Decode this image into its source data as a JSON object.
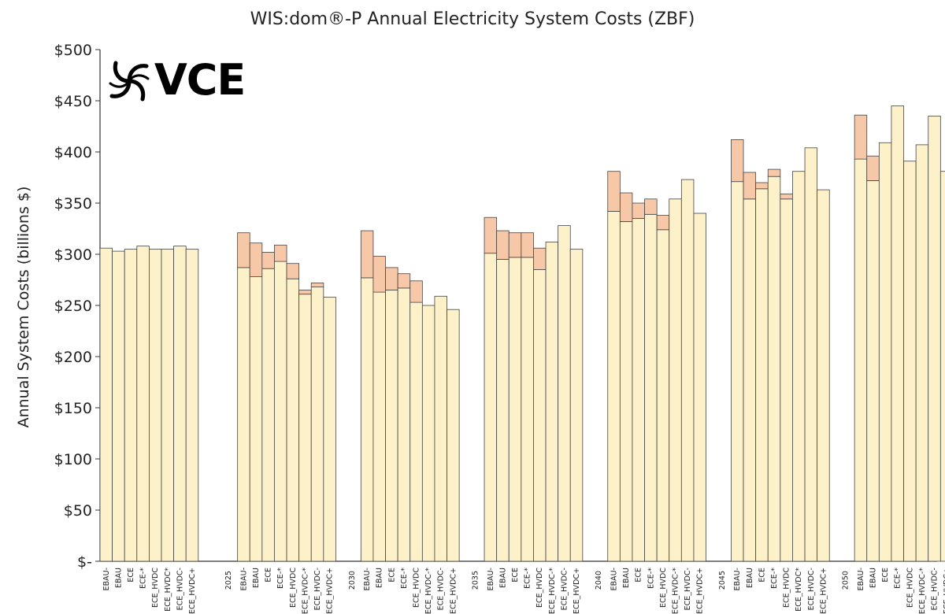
{
  "chart_data": {
    "type": "bar",
    "title": "WIS:dom®-P Annual Electricity System Costs (ZBF)",
    "ylabel": "Annual System Costs (billions $)",
    "xlabel": "",
    "ylim": [
      0,
      500
    ],
    "y_ticks": [
      0,
      50,
      100,
      150,
      200,
      250,
      300,
      350,
      400,
      450,
      500
    ],
    "y_tick_labels": [
      "$-",
      "$50",
      "$100",
      "$150",
      "$200",
      "$250",
      "$300",
      "$350",
      "$400",
      "$450",
      "$500"
    ],
    "stacked": true,
    "grid": false,
    "legend": "none",
    "series_colors": {
      "base": "#FCF1C8",
      "extra": "#F6C8A8",
      "edge": "#444444"
    },
    "groups": [
      {
        "label": "",
        "bars": [
          {
            "label": "EBAU-",
            "base": 306,
            "extra": 0
          },
          {
            "label": "EBAU",
            "base": 303,
            "extra": 0
          },
          {
            "label": "ECE",
            "base": 305,
            "extra": 0
          },
          {
            "label": "ECE-*",
            "base": 308,
            "extra": 0
          },
          {
            "label": "ECE_HVDC",
            "base": 305,
            "extra": 0
          },
          {
            "label": "ECE_HVDC*",
            "base": 305,
            "extra": 0
          },
          {
            "label": "ECE_HVDC-",
            "base": 308,
            "extra": 0
          },
          {
            "label": "ECE_HVDC+",
            "base": 305,
            "extra": 0
          }
        ]
      },
      {
        "label": "2025",
        "bars": [
          {
            "label": "EBAU-",
            "base": 287,
            "extra": 34
          },
          {
            "label": "EBAU",
            "base": 278,
            "extra": 33
          },
          {
            "label": "ECE",
            "base": 286,
            "extra": 16
          },
          {
            "label": "ECE-*",
            "base": 293,
            "extra": 16
          },
          {
            "label": "ECE_HVDC",
            "base": 276,
            "extra": 15
          },
          {
            "label": "ECE_HVDC-*",
            "base": 261,
            "extra": 4
          },
          {
            "label": "ECE_HVDC-",
            "base": 268,
            "extra": 4
          },
          {
            "label": "ECE_HVDC+",
            "base": 258,
            "extra": 0
          }
        ]
      },
      {
        "label": "2030",
        "bars": [
          {
            "label": "EBAU-",
            "base": 277,
            "extra": 46
          },
          {
            "label": "EBAU",
            "base": 263,
            "extra": 35
          },
          {
            "label": "ECE",
            "base": 265,
            "extra": 22
          },
          {
            "label": "ECE-*",
            "base": 267,
            "extra": 14
          },
          {
            "label": "ECE_HVDC",
            "base": 253,
            "extra": 21
          },
          {
            "label": "ECE_HVDC-*",
            "base": 250,
            "extra": 0
          },
          {
            "label": "ECE_HVDC-",
            "base": 259,
            "extra": 0
          },
          {
            "label": "ECE_HVDC+",
            "base": 246,
            "extra": 0
          }
        ]
      },
      {
        "label": "2035",
        "bars": [
          {
            "label": "EBAU-",
            "base": 301,
            "extra": 35
          },
          {
            "label": "EBAU",
            "base": 295,
            "extra": 28
          },
          {
            "label": "ECE",
            "base": 297,
            "extra": 24
          },
          {
            "label": "ECE-*",
            "base": 297,
            "extra": 24
          },
          {
            "label": "ECE_HVDC",
            "base": 285,
            "extra": 21
          },
          {
            "label": "ECE_HVDC-*",
            "base": 312,
            "extra": 0
          },
          {
            "label": "ECE_HVDC-",
            "base": 328,
            "extra": 0
          },
          {
            "label": "ECE_HVDC+",
            "base": 305,
            "extra": 0
          }
        ]
      },
      {
        "label": "2040",
        "bars": [
          {
            "label": "EBAU-",
            "base": 342,
            "extra": 39
          },
          {
            "label": "EBAU",
            "base": 332,
            "extra": 28
          },
          {
            "label": "ECE",
            "base": 335,
            "extra": 15
          },
          {
            "label": "ECE-*",
            "base": 339,
            "extra": 15
          },
          {
            "label": "ECE_HVDC",
            "base": 324,
            "extra": 14
          },
          {
            "label": "ECE_HVDC-*",
            "base": 354,
            "extra": 0
          },
          {
            "label": "ECE_HVDC-",
            "base": 373,
            "extra": 0
          },
          {
            "label": "ECE_HVDC+",
            "base": 340,
            "extra": 0
          }
        ]
      },
      {
        "label": "2045",
        "bars": [
          {
            "label": "EBAU-",
            "base": 371,
            "extra": 41
          },
          {
            "label": "EBAU",
            "base": 354,
            "extra": 26
          },
          {
            "label": "ECE",
            "base": 364,
            "extra": 6
          },
          {
            "label": "ECE-*",
            "base": 376,
            "extra": 7
          },
          {
            "label": "ECE_HVDC",
            "base": 354,
            "extra": 5
          },
          {
            "label": "ECE_HVDC*",
            "base": 381,
            "extra": 0
          },
          {
            "label": "ECE_HVDC-",
            "base": 404,
            "extra": 0
          },
          {
            "label": "ECE_HVDC+",
            "base": 363,
            "extra": 0
          }
        ]
      },
      {
        "label": "2050",
        "bars": [
          {
            "label": "EBAU-",
            "base": 393,
            "extra": 43
          },
          {
            "label": "EBAU",
            "base": 372,
            "extra": 24
          },
          {
            "label": "ECE",
            "base": 409,
            "extra": 0
          },
          {
            "label": "ECE-*",
            "base": 445,
            "extra": 0
          },
          {
            "label": "ECE_HVDC",
            "base": 391,
            "extra": 0
          },
          {
            "label": "ECE_HVDC-*",
            "base": 407,
            "extra": 0
          },
          {
            "label": "ECE_HVDC-",
            "base": 435,
            "extra": 0
          },
          {
            "label": "ECE_HVDC+",
            "base": 381,
            "extra": 0
          }
        ]
      }
    ]
  },
  "logo": {
    "text": "VCE",
    "icon": "swirl-logo-icon"
  }
}
